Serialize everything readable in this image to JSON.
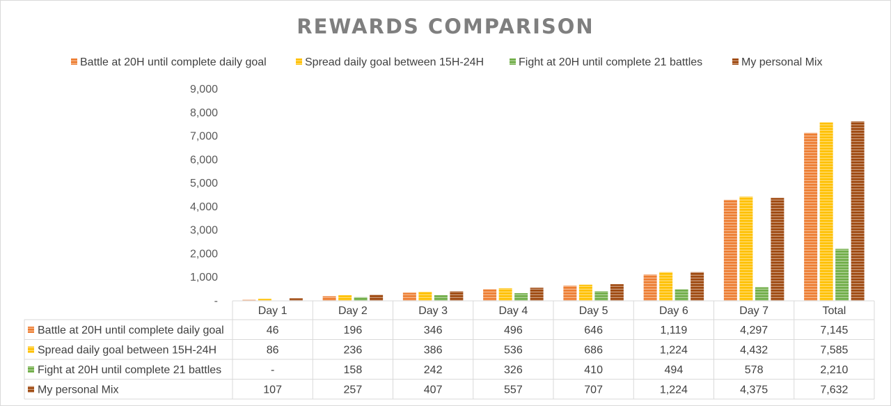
{
  "chart_data": {
    "type": "bar",
    "title": "REWARDS COMPARISON",
    "categories": [
      "Day 1",
      "Day 2",
      "Day 3",
      "Day 4",
      "Day 5",
      "Day 6",
      "Day 7",
      "Total"
    ],
    "ylim": [
      0,
      9000
    ],
    "yticks": [
      0,
      1000,
      2000,
      3000,
      4000,
      5000,
      6000,
      7000,
      8000,
      9000
    ],
    "ytick_labels": [
      "-",
      "1,000",
      "2,000",
      "3,000",
      "4,000",
      "5,000",
      "6,000",
      "7,000",
      "8,000",
      "9,000"
    ],
    "legend_position": "top",
    "grid": false,
    "data_table": true,
    "series": [
      {
        "name": "Battle at 20H until complete daily goal",
        "color": "#ed7d31",
        "values": [
          46,
          196,
          346,
          496,
          646,
          1119,
          4297,
          7145
        ],
        "labels": [
          "46",
          "196",
          "346",
          "496",
          "646",
          "1,119",
          "4,297",
          "7,145"
        ]
      },
      {
        "name": "Spread daily goal between 15H-24H",
        "color": "#ffc000",
        "values": [
          86,
          236,
          386,
          536,
          686,
          1224,
          4432,
          7585
        ],
        "labels": [
          "86",
          "236",
          "386",
          "536",
          "686",
          "1,224",
          "4,432",
          "7,585"
        ]
      },
      {
        "name": "Fight at 20H until complete 21 battles",
        "color": "#70ad47",
        "values": [
          0,
          158,
          242,
          326,
          410,
          494,
          578,
          2210
        ],
        "labels": [
          "-",
          "158",
          "242",
          "326",
          "410",
          "494",
          "578",
          "2,210"
        ]
      },
      {
        "name": "My personal Mix",
        "color": "#9e480e",
        "values": [
          107,
          257,
          407,
          557,
          707,
          1224,
          4375,
          7632
        ],
        "labels": [
          "107",
          "257",
          "407",
          "557",
          "707",
          "1,224",
          "4,375",
          "7,632"
        ]
      }
    ]
  }
}
